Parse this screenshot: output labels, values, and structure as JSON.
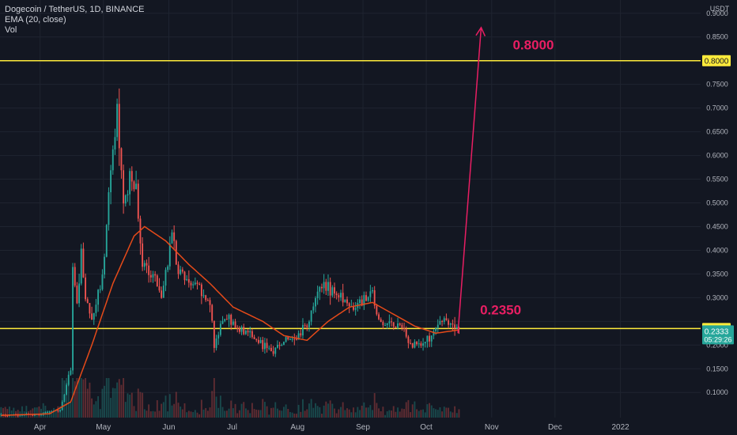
{
  "header": {
    "symbol_line": "Dogecoin / TetherUS, 1D, BINANCE",
    "indicator": "EMA (20, close)",
    "volume": "Vol"
  },
  "colors": {
    "background": "#131722",
    "grid": "#1f2430",
    "up": "#26a69a",
    "down": "#ef5350",
    "ema": "#e64a19",
    "level_line": "#ffeb3b",
    "annotation": "#e91e63",
    "axis_text": "#b2b5be",
    "last_price_bg": "#26a69a"
  },
  "chart_data": {
    "type": "candlestick",
    "title": "Dogecoin / TetherUS, 1D, BINANCE",
    "x_axis": {
      "tick_labels": [
        "Apr",
        "May",
        "Jun",
        "Jul",
        "Aug",
        "Sep",
        "Oct",
        "Nov",
        "Dec",
        "2022"
      ]
    },
    "y_axis": {
      "unit": "USDT",
      "ticks": [
        "0.9000",
        "0.8500",
        "0.8000",
        "0.7500",
        "0.7000",
        "0.6500",
        "0.6000",
        "0.5500",
        "0.5000",
        "0.4500",
        "0.4000",
        "0.3500",
        "0.3000",
        "0.2500",
        "0.2000",
        "0.1500",
        "0.1000"
      ],
      "range": [
        0.047,
        0.928
      ]
    },
    "grid": true,
    "horizontal_levels": [
      {
        "value": 0.8,
        "label": "0.8000"
      },
      {
        "value": 0.235,
        "label": "0.2350"
      }
    ],
    "last_price": {
      "value": "0.2333",
      "countdown": "05:29:26"
    },
    "annotations": [
      {
        "text": "0.8000",
        "price": 0.8
      },
      {
        "text": "0.2350",
        "price": 0.235
      }
    ],
    "projection_arrow": {
      "from_date": "2021-10-16",
      "from_price": 0.225,
      "to_date": "2021-10-27",
      "to_price": 0.87
    },
    "series": [
      {
        "type": "candlestick",
        "ohlc_keypoints": [
          [
            "2021-03-01",
            0.05
          ],
          [
            "2021-04-01",
            0.055
          ],
          [
            "2021-04-10",
            0.065
          ],
          [
            "2021-04-15",
            0.15
          ],
          [
            "2021-04-16",
            0.37
          ],
          [
            "2021-04-18",
            0.29
          ],
          [
            "2021-04-20",
            0.4
          ],
          [
            "2021-04-22",
            0.29
          ],
          [
            "2021-04-25",
            0.26
          ],
          [
            "2021-04-30",
            0.34
          ],
          [
            "2021-05-03",
            0.52
          ],
          [
            "2021-05-05",
            0.62
          ],
          [
            "2021-05-07",
            0.7
          ],
          [
            "2021-05-08",
            0.64
          ],
          [
            "2021-05-10",
            0.48
          ],
          [
            "2021-05-13",
            0.55
          ],
          [
            "2021-05-16",
            0.52
          ],
          [
            "2021-05-19",
            0.37
          ],
          [
            "2021-05-21",
            0.36
          ],
          [
            "2021-05-25",
            0.34
          ],
          [
            "2021-05-28",
            0.31
          ],
          [
            "2021-06-02",
            0.42
          ],
          [
            "2021-06-05",
            0.36
          ],
          [
            "2021-06-10",
            0.33
          ],
          [
            "2021-06-15",
            0.32
          ],
          [
            "2021-06-20",
            0.29
          ],
          [
            "2021-06-22",
            0.19
          ],
          [
            "2021-06-25",
            0.25
          ],
          [
            "2021-06-30",
            0.25
          ],
          [
            "2021-07-05",
            0.23
          ],
          [
            "2021-07-10",
            0.22
          ],
          [
            "2021-07-15",
            0.2
          ],
          [
            "2021-07-20",
            0.185
          ],
          [
            "2021-07-25",
            0.21
          ],
          [
            "2021-07-30",
            0.21
          ],
          [
            "2021-08-05",
            0.24
          ],
          [
            "2021-08-08",
            0.29
          ],
          [
            "2021-08-12",
            0.32
          ],
          [
            "2021-08-16",
            0.32
          ],
          [
            "2021-08-20",
            0.31
          ],
          [
            "2021-08-25",
            0.28
          ],
          [
            "2021-08-30",
            0.29
          ],
          [
            "2021-09-05",
            0.31
          ],
          [
            "2021-09-08",
            0.25
          ],
          [
            "2021-09-12",
            0.245
          ],
          [
            "2021-09-20",
            0.235
          ],
          [
            "2021-09-22",
            0.2
          ],
          [
            "2021-09-28",
            0.2
          ],
          [
            "2021-10-02",
            0.215
          ],
          [
            "2021-10-06",
            0.235
          ],
          [
            "2021-10-09",
            0.255
          ],
          [
            "2021-10-12",
            0.24
          ],
          [
            "2021-10-16",
            0.233
          ]
        ]
      },
      {
        "name": "EMA (20, close)",
        "type": "line",
        "points": [
          [
            "2021-03-01",
            0.05
          ],
          [
            "2021-04-05",
            0.055
          ],
          [
            "2021-04-15",
            0.08
          ],
          [
            "2021-04-25",
            0.2
          ],
          [
            "2021-05-05",
            0.33
          ],
          [
            "2021-05-15",
            0.43
          ],
          [
            "2021-05-20",
            0.45
          ],
          [
            "2021-05-30",
            0.42
          ],
          [
            "2021-06-10",
            0.37
          ],
          [
            "2021-06-20",
            0.33
          ],
          [
            "2021-07-01",
            0.28
          ],
          [
            "2021-07-15",
            0.25
          ],
          [
            "2021-07-25",
            0.22
          ],
          [
            "2021-08-05",
            0.21
          ],
          [
            "2021-08-15",
            0.25
          ],
          [
            "2021-08-25",
            0.28
          ],
          [
            "2021-09-05",
            0.29
          ],
          [
            "2021-09-15",
            0.265
          ],
          [
            "2021-09-25",
            0.24
          ],
          [
            "2021-10-05",
            0.225
          ],
          [
            "2021-10-16",
            0.232
          ]
        ]
      }
    ]
  }
}
